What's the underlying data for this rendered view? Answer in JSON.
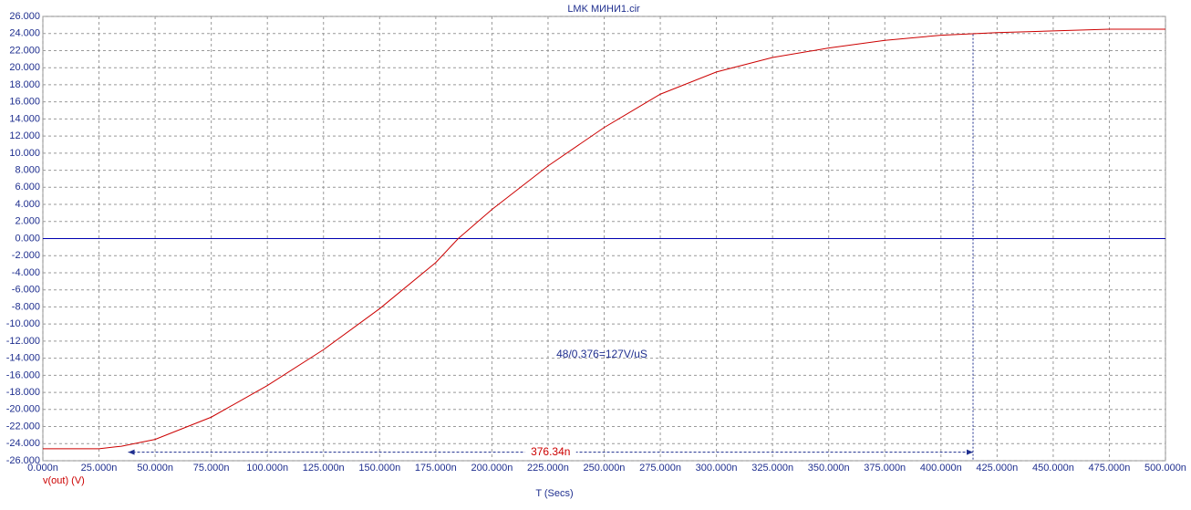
{
  "chart_data": {
    "type": "line",
    "title": "LMK МИНИ1.cir",
    "x_label": "T (Secs)",
    "xlim": [
      0,
      500
    ],
    "ylim": [
      -26,
      26
    ],
    "xticks": [
      {
        "value": 0,
        "label": "0.000n"
      },
      {
        "value": 25,
        "label": "25.000n"
      },
      {
        "value": 50,
        "label": "50.000n"
      },
      {
        "value": 75,
        "label": "75.000n"
      },
      {
        "value": 100,
        "label": "100.000n"
      },
      {
        "value": 125,
        "label": "125.000n"
      },
      {
        "value": 150,
        "label": "150.000n"
      },
      {
        "value": 175,
        "label": "175.000n"
      },
      {
        "value": 200,
        "label": "200.000n"
      },
      {
        "value": 225,
        "label": "225.000n"
      },
      {
        "value": 250,
        "label": "250.000n"
      },
      {
        "value": 275,
        "label": "275.000n"
      },
      {
        "value": 300,
        "label": "300.000n"
      },
      {
        "value": 325,
        "label": "325.000n"
      },
      {
        "value": 350,
        "label": "350.000n"
      },
      {
        "value": 375,
        "label": "375.000n"
      },
      {
        "value": 400,
        "label": "400.000n"
      },
      {
        "value": 425,
        "label": "425.000n"
      },
      {
        "value": 450,
        "label": "450.000n"
      },
      {
        "value": 475,
        "label": "475.000n"
      },
      {
        "value": 500,
        "label": "500.000n"
      }
    ],
    "yticks": [
      {
        "value": 26,
        "label": "26.000"
      },
      {
        "value": 24,
        "label": "24.000"
      },
      {
        "value": 22,
        "label": "22.000"
      },
      {
        "value": 20,
        "label": "20.000"
      },
      {
        "value": 18,
        "label": "18.000"
      },
      {
        "value": 16,
        "label": "16.000"
      },
      {
        "value": 14,
        "label": "14.000"
      },
      {
        "value": 12,
        "label": "12.000"
      },
      {
        "value": 10,
        "label": "10.000"
      },
      {
        "value": 8,
        "label": "8.000"
      },
      {
        "value": 6,
        "label": "6.000"
      },
      {
        "value": 4,
        "label": "4.000"
      },
      {
        "value": 2,
        "label": "2.000"
      },
      {
        "value": 0,
        "label": "0.000"
      },
      {
        "value": -2,
        "label": "-2.000"
      },
      {
        "value": -4,
        "label": "-4.000"
      },
      {
        "value": -6,
        "label": "-6.000"
      },
      {
        "value": -8,
        "label": "-8.000"
      },
      {
        "value": -10,
        "label": "-10.000"
      },
      {
        "value": -12,
        "label": "-12.000"
      },
      {
        "value": -14,
        "label": "-14.000"
      },
      {
        "value": -16,
        "label": "-16.000"
      },
      {
        "value": -18,
        "label": "-18.000"
      },
      {
        "value": -20,
        "label": "-20.000"
      },
      {
        "value": -22,
        "label": "-22.000"
      },
      {
        "value": -24,
        "label": "-24.000"
      },
      {
        "value": -26,
        "label": "-26.000"
      }
    ],
    "grid": true,
    "x": [
      0,
      25,
      35,
      50,
      75,
      100,
      125,
      150,
      175,
      185,
      200,
      225,
      250,
      275,
      300,
      325,
      350,
      375,
      400,
      425,
      450,
      475,
      500
    ],
    "series": [
      {
        "name": "v(out) (V)",
        "color": "#cc0000",
        "values": [
          -24.6,
          -24.6,
          -24.3,
          -23.5,
          -20.9,
          -17.2,
          -13.0,
          -8.2,
          -2.8,
          0,
          3.4,
          8.5,
          13.0,
          16.9,
          19.5,
          21.2,
          22.3,
          23.2,
          23.8,
          24.1,
          24.3,
          24.5,
          24.5
        ]
      }
    ],
    "annotation": "48/0.376=127V/uS",
    "cursor": {
      "label": "376.34n",
      "x": [
        38,
        414.3
      ],
      "y": -25,
      "top": 23.9
    }
  }
}
